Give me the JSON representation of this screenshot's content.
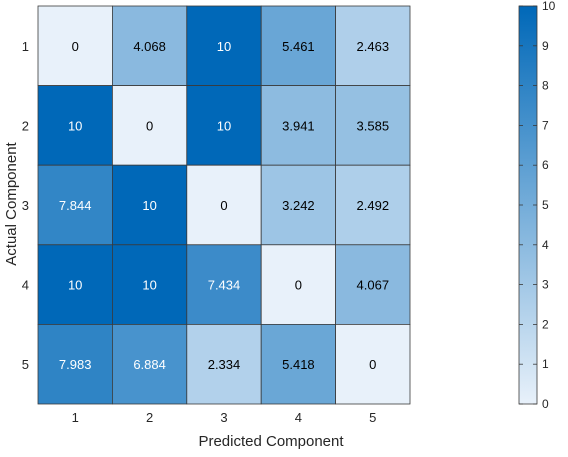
{
  "chart_data": {
    "type": "heatmap",
    "xlabel": "Predicted Component",
    "ylabel": "Actual Component",
    "x_categories": [
      "1",
      "2",
      "3",
      "4",
      "5"
    ],
    "y_categories": [
      "1",
      "2",
      "3",
      "4",
      "5"
    ],
    "values": [
      [
        0,
        4.068,
        10,
        5.461,
        2.463
      ],
      [
        10,
        0,
        10,
        3.941,
        3.585
      ],
      [
        7.844,
        10,
        0,
        3.242,
        2.492
      ],
      [
        10,
        10,
        7.434,
        0,
        4.067
      ],
      [
        7.983,
        6.884,
        2.334,
        5.418,
        0
      ]
    ],
    "value_labels": [
      [
        "0",
        "4.068",
        "10",
        "5.461",
        "2.463"
      ],
      [
        "10",
        "0",
        "10",
        "3.941",
        "3.585"
      ],
      [
        "7.844",
        "10",
        "0",
        "3.242",
        "2.492"
      ],
      [
        "10",
        "10",
        "7.434",
        "0",
        "4.067"
      ],
      [
        "7.983",
        "6.884",
        "2.334",
        "5.418",
        "0"
      ]
    ],
    "colorbar": {
      "range": [
        0,
        10
      ],
      "ticks": [
        "0",
        "1",
        "2",
        "3",
        "4",
        "5",
        "6",
        "7",
        "8",
        "9",
        "10"
      ],
      "low_color": "#e8f1fa",
      "high_color": "#0068b8"
    }
  }
}
